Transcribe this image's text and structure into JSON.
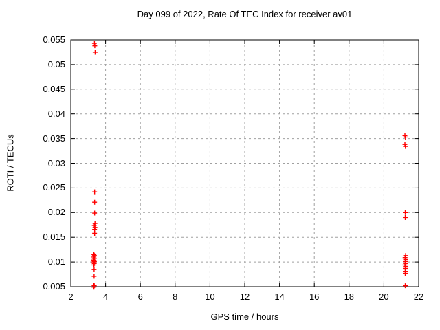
{
  "chart_data": {
    "type": "scatter",
    "title": "Day 099 of 2022, Rate Of TEC Index for receiver av01",
    "xlabel": "GPS time / hours",
    "ylabel": "ROTI / TECUs",
    "xlim": [
      2,
      22
    ],
    "ylim": [
      0.005,
      0.055
    ],
    "xticks": {
      "values": [
        2,
        4,
        6,
        8,
        10,
        12,
        14,
        16,
        18,
        20,
        22
      ],
      "labels": [
        "2",
        "4",
        "6",
        "8",
        "10",
        "12",
        "14",
        "16",
        "18",
        "20",
        "22"
      ]
    },
    "yticks": {
      "values": [
        0.005,
        0.01,
        0.015,
        0.02,
        0.025,
        0.03,
        0.035,
        0.04,
        0.045,
        0.05,
        0.055
      ],
      "labels": [
        "0.005",
        "0.01",
        "0.015",
        "0.02",
        "0.025",
        "0.03",
        "0.035",
        "0.04",
        "0.045",
        "0.05",
        "0.055"
      ]
    },
    "grid": true,
    "legend": "none",
    "marker": {
      "symbol": "plus",
      "color": "#ff0000",
      "size": 7
    },
    "colors": {
      "grid": "#a0a0a0",
      "axis": "#000000",
      "background": "#ffffff",
      "text": "#000000"
    },
    "series": [
      {
        "name": "ROTI",
        "points": [
          [
            3.36,
            0.0543
          ],
          [
            3.38,
            0.0538
          ],
          [
            3.4,
            0.0525
          ],
          [
            3.37,
            0.0242
          ],
          [
            3.37,
            0.0221
          ],
          [
            3.37,
            0.0199
          ],
          [
            3.39,
            0.0178
          ],
          [
            3.35,
            0.0174
          ],
          [
            3.39,
            0.017
          ],
          [
            3.37,
            0.0166
          ],
          [
            3.37,
            0.0158
          ],
          [
            3.33,
            0.0115
          ],
          [
            3.36,
            0.0113
          ],
          [
            3.33,
            0.011
          ],
          [
            3.35,
            0.0107
          ],
          [
            3.31,
            0.0104
          ],
          [
            3.34,
            0.0103
          ],
          [
            3.36,
            0.0101
          ],
          [
            3.33,
            0.01
          ],
          [
            3.35,
            0.0097
          ],
          [
            3.33,
            0.0094
          ],
          [
            3.34,
            0.0085
          ],
          [
            3.34,
            0.0071
          ],
          [
            3.32,
            0.0053
          ],
          [
            3.35,
            0.0052
          ],
          [
            3.33,
            0.0049
          ],
          [
            21.21,
            0.0356
          ],
          [
            21.24,
            0.0353
          ],
          [
            21.21,
            0.0338
          ],
          [
            21.24,
            0.0334
          ],
          [
            21.23,
            0.02
          ],
          [
            21.23,
            0.019
          ],
          [
            21.25,
            0.0113
          ],
          [
            21.22,
            0.0109
          ],
          [
            21.25,
            0.0105
          ],
          [
            21.23,
            0.0101
          ],
          [
            21.24,
            0.0097
          ],
          [
            21.21,
            0.0094
          ],
          [
            21.24,
            0.0091
          ],
          [
            21.23,
            0.0087
          ],
          [
            21.23,
            0.0081
          ],
          [
            21.23,
            0.0077
          ],
          [
            21.23,
            0.0052
          ]
        ]
      }
    ]
  }
}
